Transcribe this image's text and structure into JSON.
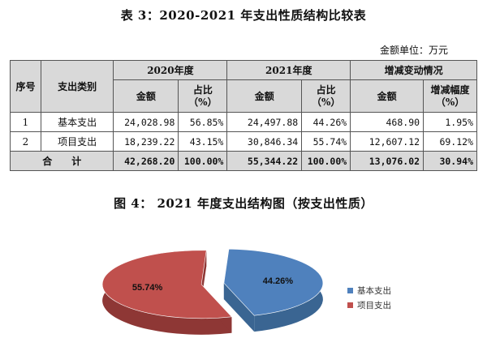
{
  "table_title": "表 3：2020-2021 年支出性质结构比较表",
  "unit_label": "金额单位：万元",
  "headers": {
    "seq": "序号",
    "category": "支出类别",
    "y2020": "2020年度",
    "y2021": "2021年度",
    "change": "增减变动情况",
    "amount": "金额",
    "ratio": "占比（%）",
    "change_rate": "增减幅度（%）"
  },
  "rows": [
    {
      "seq": "1",
      "category": "基本支出",
      "a2020": "24,028.98",
      "r2020": "56.85%",
      "a2021": "24,497.88",
      "r2021": "44.26%",
      "chg": "468.90",
      "chg_rate": "1.95%"
    },
    {
      "seq": "2",
      "category": "项目支出",
      "a2020": "18,239.22",
      "r2020": "43.15%",
      "a2021": "30,846.34",
      "r2021": "55.74%",
      "chg": "12,607.12",
      "chg_rate": "69.12%"
    }
  ],
  "total": {
    "label": "合　　计",
    "a2020": "42,268.20",
    "r2020": "100.00%",
    "a2021": "55,344.22",
    "r2021": "100.00%",
    "chg": "13,076.02",
    "chg_rate": "30.94%"
  },
  "figure_title": "图 4：  2021 年度支出结构图（按支出性质）",
  "chart_data": {
    "type": "pie",
    "title": "",
    "slices": [
      {
        "label": "基本支出",
        "value": 44.26,
        "display": "44.26%",
        "color": "#4f81bd",
        "side": "#3a6592"
      },
      {
        "label": "项目支出",
        "value": 55.74,
        "display": "55.74%",
        "color": "#c0504d",
        "side": "#8e3735"
      }
    ],
    "legend_position": "right",
    "exploded": true,
    "style": "3d"
  }
}
